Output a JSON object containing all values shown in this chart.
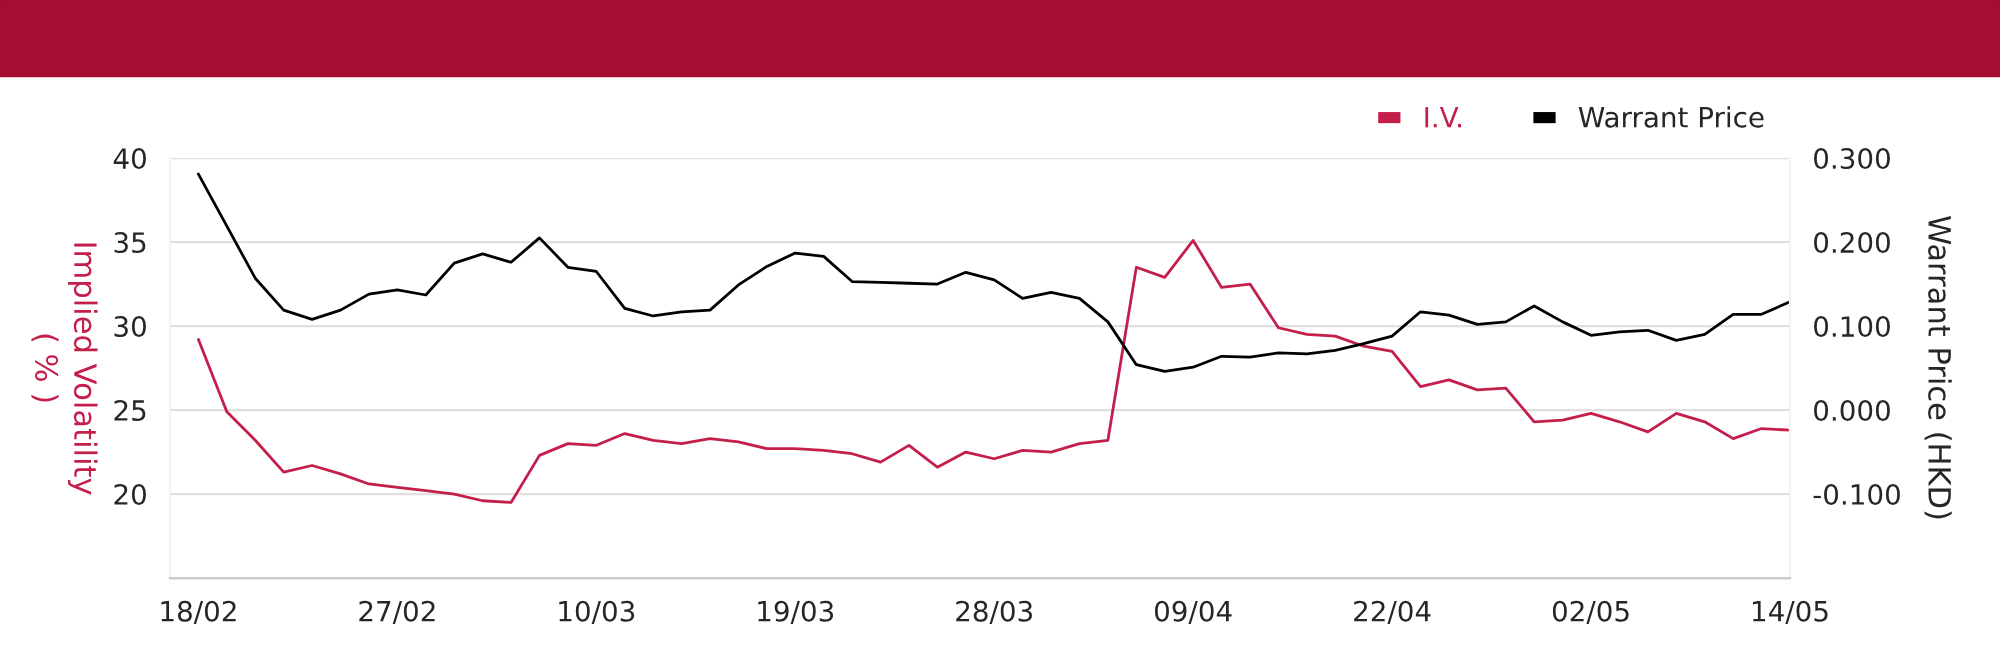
{
  "chart_data": {
    "type": "line",
    "categories": [
      "18/02",
      null,
      null,
      null,
      null,
      null,
      null,
      "27/02",
      null,
      null,
      null,
      null,
      null,
      null,
      "10/03",
      null,
      null,
      null,
      null,
      null,
      null,
      "19/03",
      null,
      null,
      null,
      null,
      null,
      null,
      "28/03",
      null,
      null,
      null,
      null,
      null,
      null,
      "09/04",
      null,
      null,
      null,
      null,
      null,
      null,
      "22/04",
      null,
      null,
      null,
      null,
      null,
      null,
      "02/05",
      null,
      null,
      null,
      null,
      null,
      null,
      "14/05"
    ],
    "series": [
      {
        "name": "I.V.",
        "color": "#c41e4a",
        "values": [
          29.2,
          24.9,
          23.2,
          21.3,
          21.7,
          21.2,
          20.6,
          20.4,
          20.2,
          20.0,
          19.6,
          19.5,
          22.3,
          23.0,
          22.9,
          23.6,
          23.2,
          23.0,
          23.3,
          23.1,
          22.7,
          22.7,
          22.6,
          22.4,
          21.9,
          22.9,
          21.6,
          22.5,
          22.1,
          22.6,
          22.5,
          23.0,
          23.2,
          33.5,
          32.9,
          35.1,
          32.3,
          32.5,
          29.9,
          29.5,
          29.4,
          28.8,
          28.5,
          26.4,
          26.8,
          26.2,
          26.3,
          24.3,
          24.4,
          24.8,
          24.3,
          23.7,
          24.8,
          24.3,
          23.3,
          23.9,
          23.8
        ]
      },
      {
        "name": "Warrant Price",
        "color": "#000000",
        "axis": "y2",
        "values": [
          0.281,
          0.219,
          0.157,
          0.119,
          0.108,
          0.119,
          0.138,
          0.143,
          0.137,
          0.175,
          0.186,
          0.176,
          0.205,
          0.17,
          0.165,
          0.121,
          0.112,
          0.117,
          0.119,
          0.149,
          0.171,
          0.187,
          0.183,
          0.153,
          0.152,
          0.151,
          0.15,
          0.164,
          0.155,
          0.133,
          0.14,
          0.133,
          0.105,
          0.054,
          0.046,
          0.051,
          0.064,
          0.063,
          0.068,
          0.067,
          0.071,
          0.079,
          0.088,
          0.117,
          0.113,
          0.102,
          0.105,
          0.124,
          0.105,
          0.089,
          0.093,
          0.095,
          0.083,
          0.09,
          0.114,
          0.114,
          0.129
        ]
      }
    ],
    "ylabel": "Implied Volatility\n( % )",
    "y2label": "Warrant Price (HKD)",
    "ylim": [
      15,
      40
    ],
    "yticks": [
      20,
      25,
      30,
      35,
      40
    ],
    "y2lim": [
      -0.2,
      0.3
    ],
    "y2ticks": [
      {
        "value": -0.1,
        "label": "-0.100"
      },
      {
        "value": 0.0,
        "label": "0.000"
      },
      {
        "value": 0.1,
        "label": "0.100"
      },
      {
        "value": 0.2,
        "label": "0.200"
      },
      {
        "value": 0.3,
        "label": "0.300"
      }
    ],
    "grid": "y",
    "legend": "top right",
    "marker": "none",
    "line_style": "solid"
  }
}
